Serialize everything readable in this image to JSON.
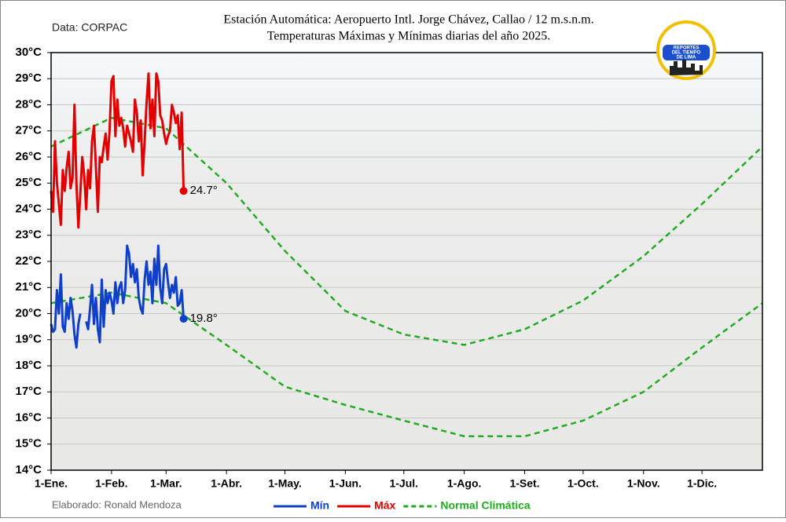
{
  "chart_data": {
    "type": "line",
    "title": "Estación Automática: Aeropuerto Intl. Jorge Chávez, Callao / 12 m.s.n.m.",
    "subtitle": "Temperaturas Máximas y Mínimas diarias del año 2025.",
    "source": "Data: CORPAC",
    "credit": "Elaborado: Ronald Mendoza",
    "logo_text": [
      "REPORTES",
      "DEL TIEMPO",
      "DE LIMA"
    ],
    "xlim": [
      0,
      365
    ],
    "xticks": [
      {
        "value": 0,
        "label": "1-Ene."
      },
      {
        "value": 31,
        "label": "1-Feb."
      },
      {
        "value": 59,
        "label": "1-Mar."
      },
      {
        "value": 90,
        "label": "1-Abr."
      },
      {
        "value": 120,
        "label": "1-May."
      },
      {
        "value": 151,
        "label": "1-Jun."
      },
      {
        "value": 181,
        "label": "1-Jul."
      },
      {
        "value": 212,
        "label": "1-Ago."
      },
      {
        "value": 243,
        "label": "1-Set."
      },
      {
        "value": 273,
        "label": "1-Oct."
      },
      {
        "value": 304,
        "label": "1-Nov."
      },
      {
        "value": 334,
        "label": "1-Dic."
      }
    ],
    "ylim": [
      14,
      30
    ],
    "yticks": [
      {
        "value": 14,
        "label": "14°C"
      },
      {
        "value": 15,
        "label": "15°C"
      },
      {
        "value": 16,
        "label": "16°C"
      },
      {
        "value": 17,
        "label": "17°C"
      },
      {
        "value": 18,
        "label": "18°C"
      },
      {
        "value": 19,
        "label": "19°C"
      },
      {
        "value": 20,
        "label": "20°C"
      },
      {
        "value": 21,
        "label": "21°C"
      },
      {
        "value": 22,
        "label": "22°C"
      },
      {
        "value": 23,
        "label": "23°C"
      },
      {
        "value": 24,
        "label": "24°C"
      },
      {
        "value": 25,
        "label": "25°C"
      },
      {
        "value": 26,
        "label": "26°C"
      },
      {
        "value": 27,
        "label": "27°C"
      },
      {
        "value": 28,
        "label": "28°C"
      },
      {
        "value": 29,
        "label": "29°C"
      },
      {
        "value": 30,
        "label": "30°C"
      }
    ],
    "grid": true,
    "x": [
      0,
      1,
      2,
      3,
      4,
      5,
      6,
      7,
      8,
      9,
      10,
      11,
      12,
      13,
      14,
      15,
      16,
      17,
      18,
      19,
      20,
      21,
      22,
      23,
      24,
      25,
      26,
      27,
      28,
      29,
      30,
      31,
      32,
      33,
      34,
      35,
      36,
      37,
      38,
      39,
      40,
      41,
      42,
      43,
      44,
      45,
      46,
      47,
      48,
      49,
      50,
      51,
      52,
      53,
      54,
      55,
      56,
      57,
      58,
      59,
      60,
      61,
      62,
      63,
      64,
      65,
      66,
      67,
      68
    ],
    "series": [
      {
        "name": "Mín",
        "color": "#1040c8",
        "last_label": "19.8°",
        "values": [
          19.6,
          19.3,
          19.4,
          20.9,
          20.0,
          21.5,
          19.5,
          19.3,
          20.4,
          19.8,
          20.6,
          20.1,
          19.2,
          18.7,
          19.6,
          20.0,
          null,
          null,
          19.7,
          19.4,
          20.2,
          21.1,
          19.6,
          20.6,
          19.4,
          18.9,
          21.3,
          19.5,
          20.9,
          20.4,
          20.8,
          20.5,
          20.0,
          21.2,
          20.4,
          21.0,
          21.2,
          20.4,
          20.9,
          22.6,
          22.3,
          21.4,
          21.9,
          21.2,
          21.7,
          20.6,
          20.2,
          20.0,
          21.3,
          22.0,
          21.1,
          21.6,
          20.4,
          22.1,
          21.1,
          22.6,
          21.0,
          20.4,
          21.7,
          21.9,
          21.2,
          20.6,
          21.1,
          20.8,
          21.4,
          20.3,
          20.4,
          20.9,
          19.8
        ]
      },
      {
        "name": "Máx",
        "color": "#e00000",
        "last_label": "24.7°",
        "values": [
          24.7,
          23.9,
          26.6,
          25.0,
          24.2,
          23.4,
          25.5,
          24.7,
          25.6,
          26.2,
          24.8,
          25.2,
          28.0,
          25.0,
          23.3,
          24.6,
          26.0,
          25.3,
          24.0,
          25.5,
          24.8,
          26.6,
          27.2,
          25.6,
          23.9,
          26.0,
          25.8,
          26.4,
          26.9,
          25.9,
          27.0,
          28.9,
          29.1,
          26.8,
          28.2,
          27.2,
          27.5,
          27.1,
          26.4,
          27.2,
          26.9,
          26.6,
          26.2,
          28.2,
          27.7,
          26.6,
          27.4,
          25.3,
          26.6,
          28.1,
          29.2,
          27.1,
          28.2,
          26.8,
          29.2,
          28.9,
          27.6,
          27.4,
          26.9,
          26.5,
          26.8,
          27.0,
          28.0,
          27.7,
          27.3,
          27.6,
          26.3,
          27.7,
          24.7
        ]
      }
    ],
    "normal": {
      "name": "Normal Climática",
      "color": "#22aa22",
      "x": [
        0,
        31,
        59,
        90,
        120,
        151,
        181,
        212,
        243,
        273,
        304,
        334,
        365
      ],
      "max": [
        26.4,
        27.5,
        27.1,
        25.0,
        22.4,
        20.1,
        19.2,
        18.8,
        19.4,
        20.5,
        22.2,
        24.2,
        26.4
      ],
      "min": [
        20.4,
        20.8,
        20.4,
        18.8,
        17.2,
        16.5,
        15.9,
        15.3,
        15.3,
        15.9,
        17.0,
        18.7,
        20.4
      ]
    }
  }
}
